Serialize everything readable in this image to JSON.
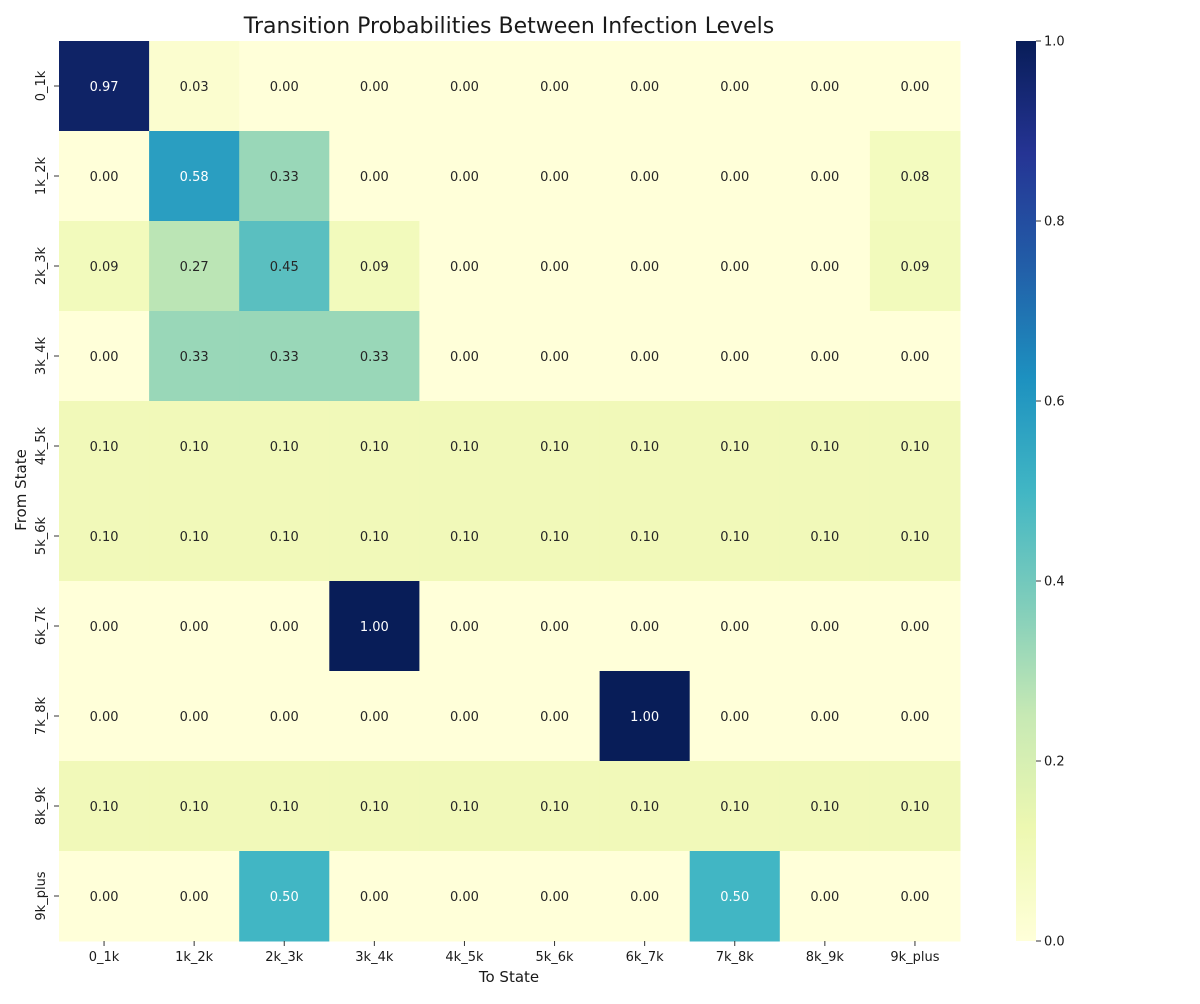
{
  "chart_data": {
    "type": "heatmap",
    "title": "Transition Probabilities Between Infection Levels",
    "xlabel": "To State",
    "ylabel": "From State",
    "x_categories": [
      "0_1k",
      "1k_2k",
      "2k_3k",
      "3k_4k",
      "4k_5k",
      "5k_6k",
      "6k_7k",
      "7k_8k",
      "8k_9k",
      "9k_plus"
    ],
    "y_categories": [
      "0_1k",
      "1k_2k",
      "2k_3k",
      "3k_4k",
      "4k_5k",
      "5k_6k",
      "6k_7k",
      "7k_8k",
      "8k_9k",
      "9k_plus"
    ],
    "values": [
      [
        0.97,
        0.03,
        0.0,
        0.0,
        0.0,
        0.0,
        0.0,
        0.0,
        0.0,
        0.0
      ],
      [
        0.0,
        0.58,
        0.33,
        0.0,
        0.0,
        0.0,
        0.0,
        0.0,
        0.0,
        0.08
      ],
      [
        0.09,
        0.27,
        0.45,
        0.09,
        0.0,
        0.0,
        0.0,
        0.0,
        0.0,
        0.09
      ],
      [
        0.0,
        0.33,
        0.33,
        0.33,
        0.0,
        0.0,
        0.0,
        0.0,
        0.0,
        0.0
      ],
      [
        0.1,
        0.1,
        0.1,
        0.1,
        0.1,
        0.1,
        0.1,
        0.1,
        0.1,
        0.1
      ],
      [
        0.1,
        0.1,
        0.1,
        0.1,
        0.1,
        0.1,
        0.1,
        0.1,
        0.1,
        0.1
      ],
      [
        0.0,
        0.0,
        0.0,
        1.0,
        0.0,
        0.0,
        0.0,
        0.0,
        0.0,
        0.0
      ],
      [
        0.0,
        0.0,
        0.0,
        0.0,
        0.0,
        0.0,
        1.0,
        0.0,
        0.0,
        0.0
      ],
      [
        0.1,
        0.1,
        0.1,
        0.1,
        0.1,
        0.1,
        0.1,
        0.1,
        0.1,
        0.1
      ],
      [
        0.0,
        0.0,
        0.5,
        0.0,
        0.0,
        0.0,
        0.0,
        0.5,
        0.0,
        0.0
      ]
    ],
    "colorscale": "YlGnBu",
    "value_range": [
      0,
      1
    ],
    "colorbar": {
      "ticks": [
        "0.0",
        "0.2",
        "0.4",
        "0.6",
        "0.8",
        "1.0"
      ],
      "tick_values": [
        0,
        0.2,
        0.4,
        0.6,
        0.8,
        1.0
      ]
    },
    "annotations": "cell values shown with 2 decimals",
    "grid": false,
    "legend": "colorbar-right"
  }
}
